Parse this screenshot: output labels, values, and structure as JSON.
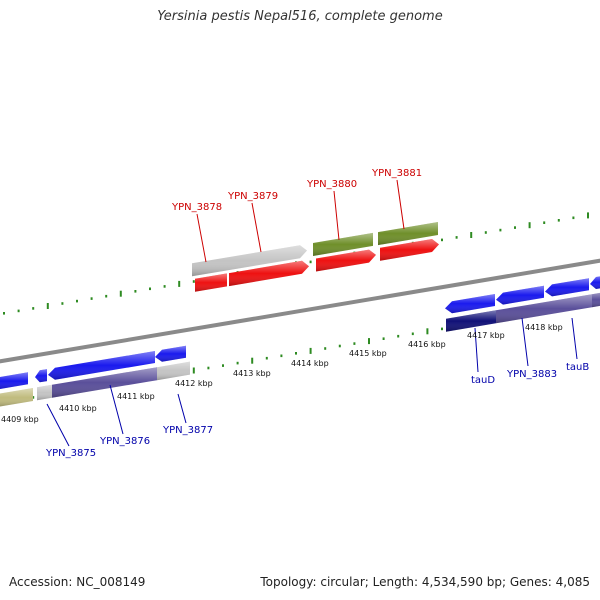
{
  "title": "Yersinia pestis Nepal516, complete genome",
  "footer": {
    "accession": "Accession: NC_008149",
    "topology": "Topology: circular; Length: 4,534,590 bp; Genes: 4,085"
  },
  "colors": {
    "background": "#ffffff",
    "backbone": "#8a8a8a",
    "tick": "#2e8b22",
    "top_label": "#cc0000",
    "bottom_label": "#0000aa",
    "red_gene": "#ee1111",
    "olive_gene": "#6f8f2a",
    "grey_gene": "#c4c4c4",
    "blue_gene": "#1a1aee",
    "purple_gene": "#5a4f9a",
    "khaki_gene": "#c0bb7e",
    "navy_gene": "#101077"
  },
  "kbp_labels": [
    "4409 kbp",
    "4410 kbp",
    "4411 kbp",
    "4412 kbp",
    "4413 kbp",
    "4414 kbp",
    "4415 kbp",
    "4416 kbp",
    "4417 kbp",
    "4418 kbp"
  ],
  "top_gene_labels": [
    "YPN_3878",
    "YPN_3879",
    "YPN_3880",
    "YPN_3881"
  ],
  "bottom_gene_labels": [
    "YPN_3875",
    "YPN_3876",
    "YPN_3877",
    "tauD",
    "YPN_3883",
    "tauB"
  ]
}
